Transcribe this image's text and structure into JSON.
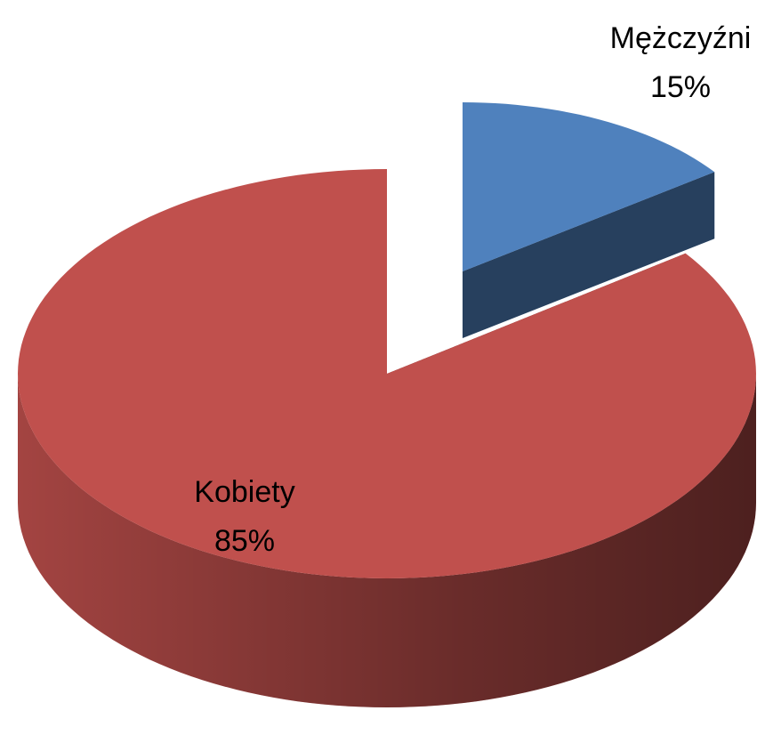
{
  "chart_data": {
    "type": "pie",
    "categories": [
      "Mężczyźni",
      "Kobiety"
    ],
    "values": [
      15,
      85
    ],
    "value_labels": [
      "15%",
      "85%"
    ],
    "colors": [
      "#4f81bd",
      "#c0504d"
    ]
  }
}
